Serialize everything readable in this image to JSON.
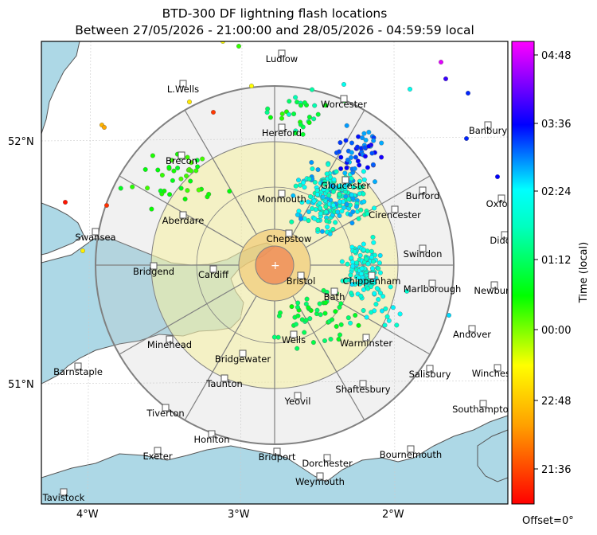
{
  "title": {
    "line1": "BTD-300 DF lightning flash locations",
    "line2": "Between 27/05/2026 - 21:00:00 and 28/05/2026 - 04:59:59 local"
  },
  "colorbar": {
    "label": "Time (local)",
    "ticks": [
      "04:48",
      "03:36",
      "02:24",
      "01:12",
      "00:00",
      "22:48",
      "21:36"
    ],
    "offset_label": "Offset=0°"
  },
  "axes": {
    "lon_ticks": [
      "4°W",
      "3°W",
      "2°W"
    ],
    "lat_ticks": [
      "52°N",
      "51°N"
    ]
  },
  "towns": [
    "Ludlow",
    "L.Wells",
    "Worcester",
    "Hereford",
    "Banbury",
    "Brecon",
    "Gloucester",
    "Burford",
    "Monmouth",
    "Oxford",
    "Aberdare",
    "Cirencester",
    "Swansea",
    "Chepstow",
    "Didcot",
    "Swindon",
    "Bridgend",
    "Cardiff",
    "Bristol",
    "Chippenham",
    "Marlborough",
    "Newbury",
    "Bath",
    "Andover",
    "Wells",
    "Warminster",
    "Minehead",
    "Bridgewater",
    "Salisbury",
    "Winchester",
    "Barnstaple",
    "Taunton",
    "Shaftesbury",
    "Yeovil",
    "Southampton",
    "Tiverton",
    "Honiton",
    "Exeter",
    "Bridport",
    "Bournemouth",
    "Dorchester",
    "Weymouth",
    "Tavistock"
  ],
  "colors": {
    "sea": "#add8e6",
    "land": "#ffffff",
    "range_outer": "#f0f0f0",
    "range_middle": "#f5f3c2",
    "range_inner": "#f5df98",
    "range_core": "#f4a06a"
  }
}
